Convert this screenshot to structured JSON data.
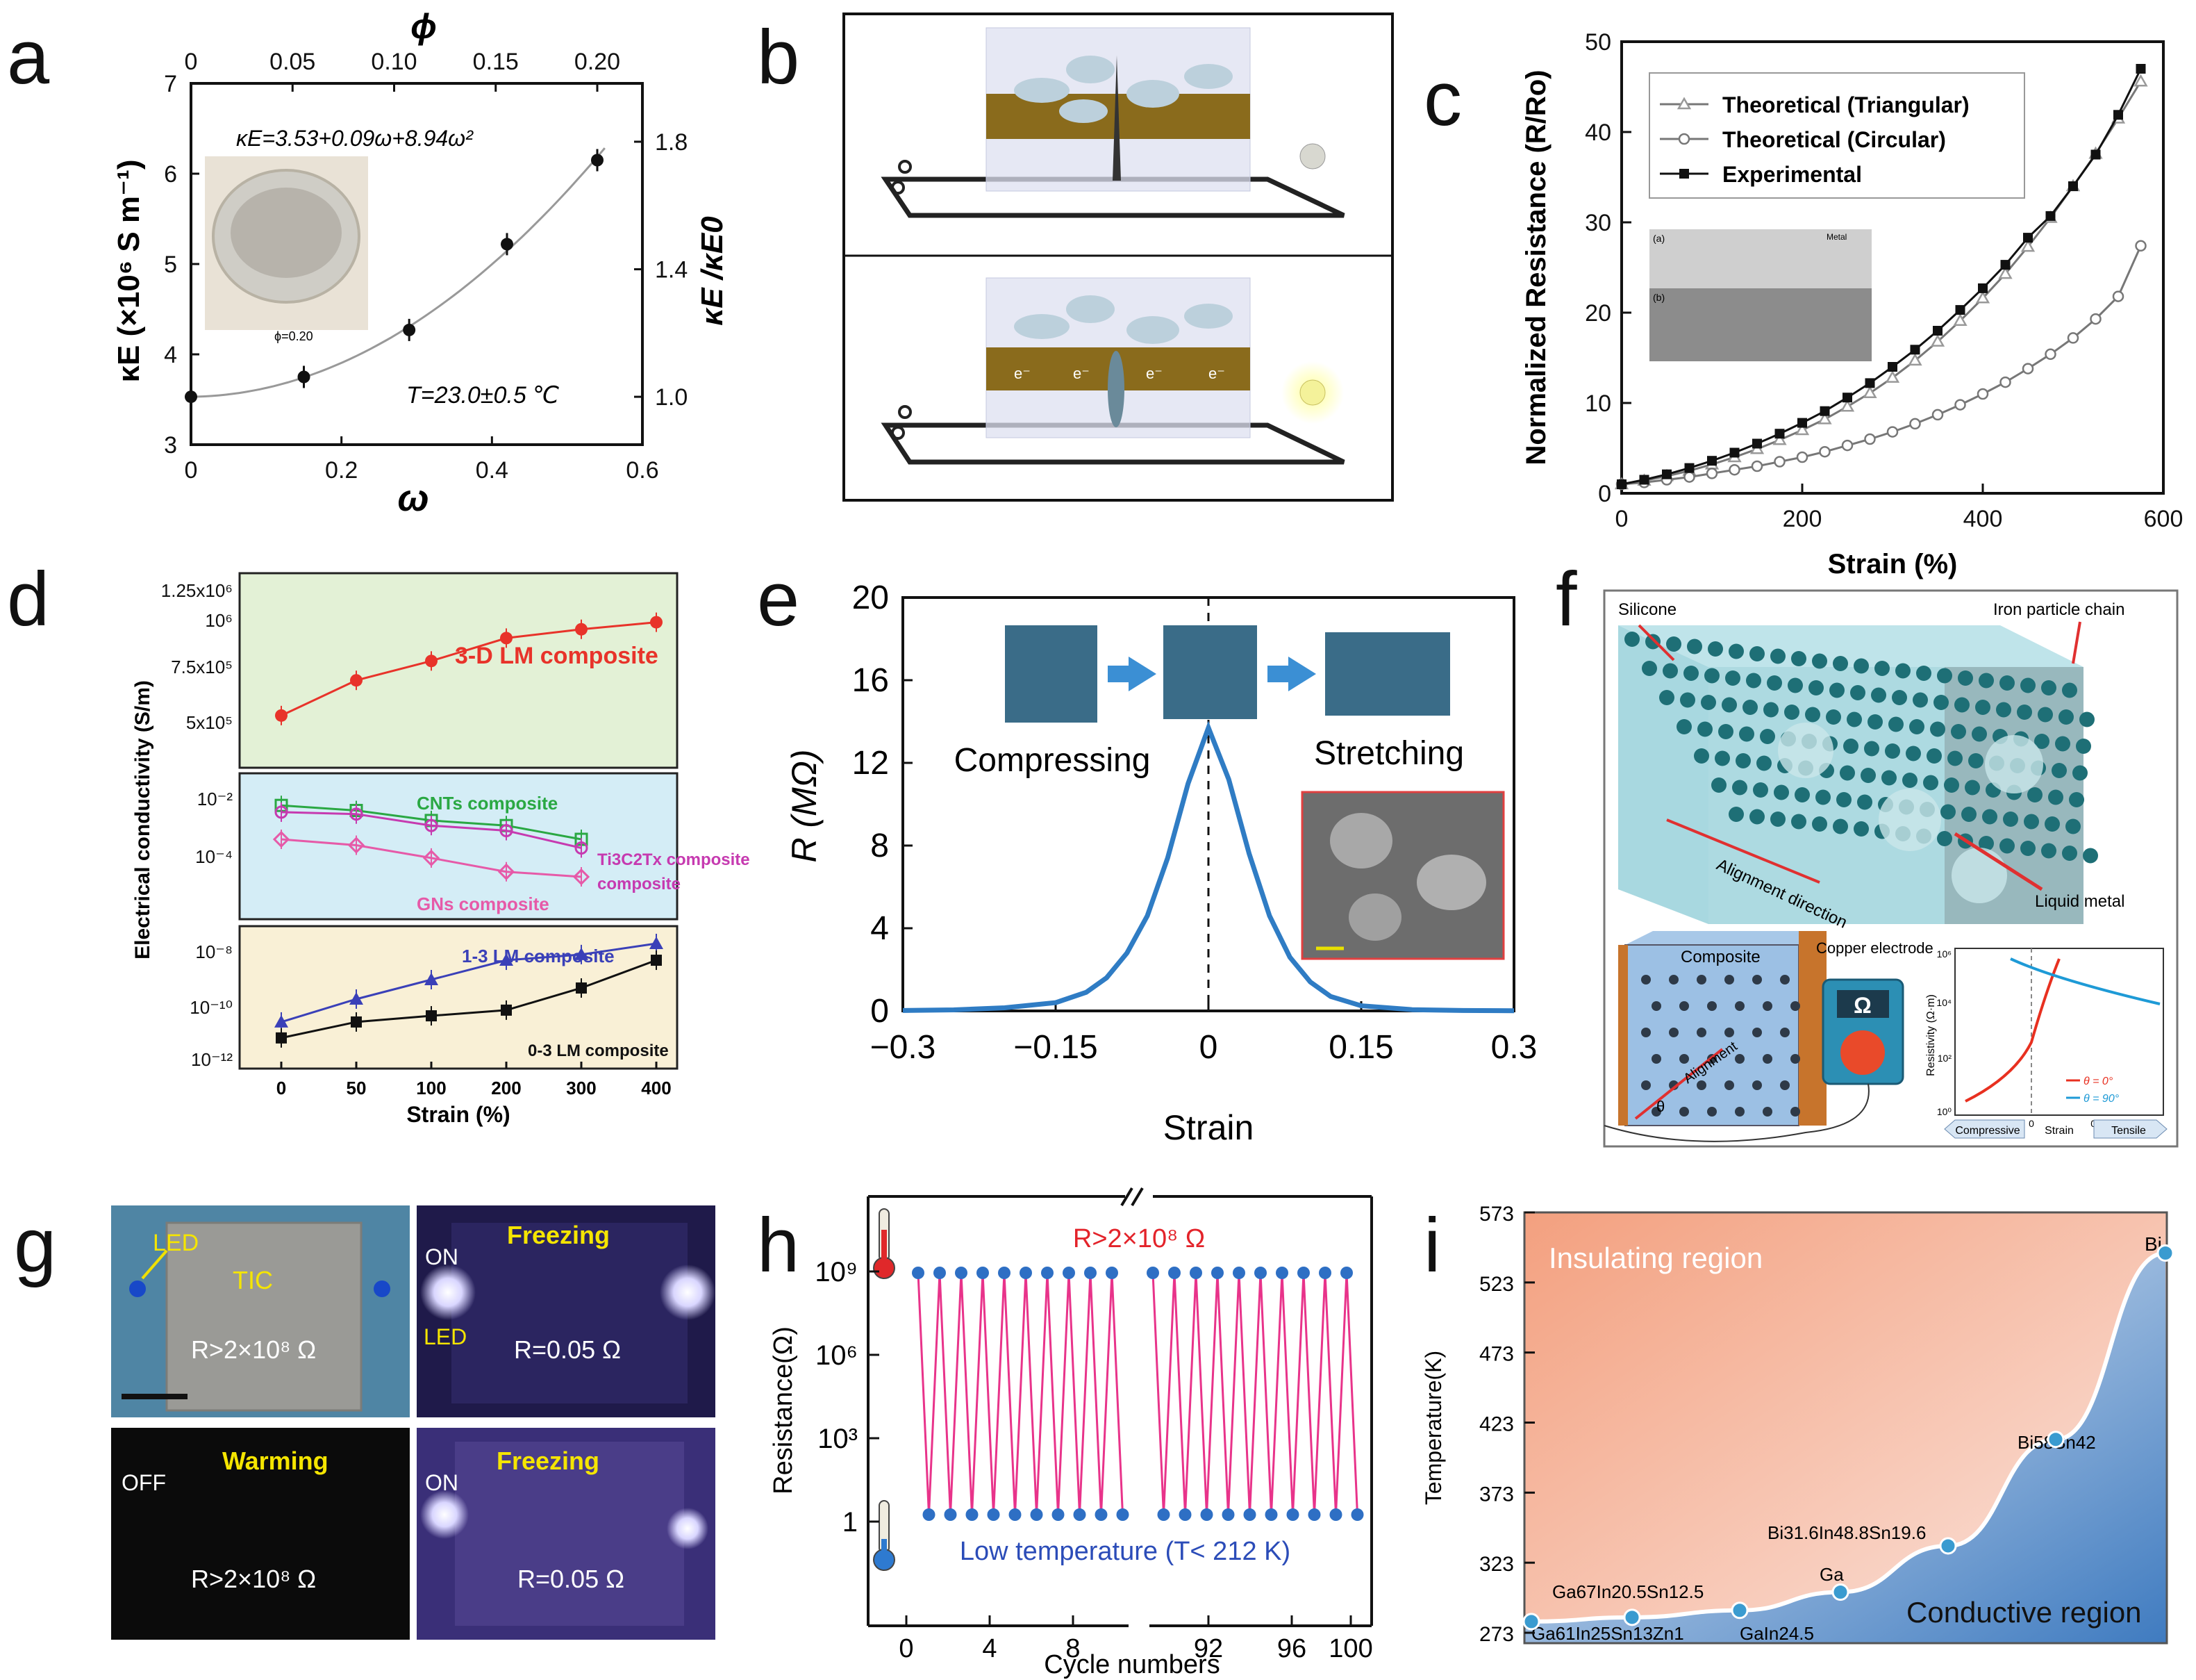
{
  "panel_labels": [
    "a",
    "b",
    "c",
    "d",
    "e",
    "f",
    "g",
    "h",
    "i"
  ],
  "chart_data": [
    {
      "panel": "a",
      "type": "scatter",
      "xlabel": "ω",
      "ylabel": "κE (×10⁶ S m⁻¹)",
      "top_xlabel": "ϕ",
      "right_ylabel": "κE /κE0",
      "xlim": [
        0,
        0.6
      ],
      "ylim": [
        3,
        7
      ],
      "x_ticks": [
        "0",
        "0.2",
        "0.4",
        "0.6"
      ],
      "y_ticks": [
        "3",
        "4",
        "5",
        "6",
        "7"
      ],
      "top_ticks": [
        "0",
        "0.05",
        "0.10",
        "0.15",
        "0.20"
      ],
      "right_ticks": [
        "1.0",
        "1.4",
        "1.8"
      ],
      "x": [
        0,
        0.15,
        0.29,
        0.42,
        0.54
      ],
      "y": [
        3.53,
        3.75,
        4.27,
        5.22,
        6.15
      ],
      "fit_label": "κE=3.53+0.09ω+8.94ω²",
      "temperature_label": "T=23.0±0.5 ℃",
      "inset_label": "ϕ=0.20"
    },
    {
      "panel": "c",
      "type": "line",
      "xlabel": "Strain (%)",
      "ylabel": "Normalized Resistance (R/Ro)",
      "xlim": [
        0,
        600
      ],
      "ylim": [
        0,
        50
      ],
      "x_ticks": [
        "0",
        "200",
        "400",
        "600"
      ],
      "y_ticks": [
        "0",
        "10",
        "20",
        "30",
        "40",
        "50"
      ],
      "x": [
        0,
        25,
        50,
        75,
        100,
        125,
        150,
        175,
        200,
        225,
        250,
        275,
        300,
        325,
        350,
        375,
        400,
        425,
        450,
        475,
        500,
        525,
        550,
        575
      ],
      "series": [
        {
          "name": "Theoretical (Triangular)",
          "marker": "triangle",
          "values": [
            1.0,
            1.4,
            1.9,
            2.5,
            3.2,
            4.0,
            4.9,
            5.9,
            7.0,
            8.2,
            9.6,
            11.1,
            12.8,
            14.7,
            16.8,
            19.1,
            21.6,
            24.3,
            27.3,
            30.5,
            34.0,
            37.6,
            41.5,
            45.6
          ]
        },
        {
          "name": "Theoretical (Circular)",
          "marker": "circle",
          "values": [
            1.0,
            1.2,
            1.5,
            1.8,
            2.2,
            2.6,
            3.0,
            3.5,
            4.0,
            4.6,
            5.3,
            6.0,
            6.8,
            7.7,
            8.7,
            9.8,
            11.0,
            12.3,
            13.8,
            15.4,
            17.2,
            19.3,
            21.8,
            27.4
          ]
        },
        {
          "name": "Experimental",
          "marker": "square",
          "values": [
            1.0,
            1.5,
            2.1,
            2.8,
            3.6,
            4.5,
            5.5,
            6.6,
            7.8,
            9.1,
            10.6,
            12.2,
            14.0,
            15.9,
            18.0,
            20.3,
            22.7,
            25.3,
            28.3,
            30.7,
            34.0,
            37.5,
            41.9,
            47.0
          ]
        }
      ],
      "inset_labels": [
        "(a)",
        "Metal",
        "(b)"
      ]
    },
    {
      "panel": "d",
      "type": "line",
      "xlabel": "Strain (%)",
      "ylabel": "Electrical conductivity (S/m)",
      "categories": [
        "0",
        "50",
        "100",
        "200",
        "300",
        "400"
      ],
      "upper_ticks": [
        "1.25x10⁶",
        "10⁶",
        "7.5x10⁵",
        "5x10⁵"
      ],
      "middle_ticks": [
        "10⁻²",
        "10⁻⁴"
      ],
      "lower_ticks": [
        "10⁻⁸",
        "10⁻¹⁰",
        "10⁻¹²"
      ],
      "series": [
        {
          "name": "3-D LM composite",
          "color": "#e8332a",
          "values": [
            540000,
            740000,
            850000,
            980000,
            1030000,
            1070000
          ]
        },
        {
          "name": "CNTs composite",
          "color": "#2aa843",
          "values": [
            0.006,
            0.004,
            0.0018,
            0.0012,
            0.0004,
            null
          ]
        },
        {
          "name": "Ti3C2Tx composite",
          "color": "#c63ab0",
          "values": [
            0.0035,
            0.003,
            0.0012,
            0.0008,
            0.0002,
            null
          ]
        },
        {
          "name": "GNs composite",
          "color": "#e65aa8",
          "values": [
            0.0004,
            0.00025,
            9e-05,
            3e-05,
            2e-05,
            null
          ]
        },
        {
          "name": "1-3 LM composite",
          "color": "#3a40b8",
          "values": [
            3e-11,
            2e-10,
            1e-09,
            5e-09,
            8e-09,
            2e-08
          ]
        },
        {
          "name": "0-3 LM composite",
          "color": "#111111",
          "values": [
            8e-12,
            3e-11,
            5e-11,
            8e-11,
            5e-10,
            5e-09
          ]
        }
      ]
    },
    {
      "panel": "e",
      "type": "line",
      "xlabel": "Strain",
      "ylabel": "R (MΩ)",
      "xlim": [
        -0.3,
        0.3
      ],
      "ylim": [
        0,
        20
      ],
      "x_ticks": [
        "−0.3",
        "−0.15",
        "0",
        "0.15",
        "0.3"
      ],
      "y_ticks": [
        "0",
        "4",
        "8",
        "12",
        "16",
        "20"
      ],
      "x": [
        -0.3,
        -0.25,
        -0.2,
        -0.15,
        -0.12,
        -0.1,
        -0.08,
        -0.06,
        -0.04,
        -0.02,
        0,
        0.02,
        0.04,
        0.06,
        0.08,
        0.1,
        0.12,
        0.15,
        0.2,
        0.25,
        0.3
      ],
      "values": [
        0.02,
        0.05,
        0.15,
        0.4,
        0.9,
        1.6,
        2.8,
        4.6,
        7.4,
        11.0,
        13.7,
        11.2,
        7.6,
        4.6,
        2.6,
        1.4,
        0.7,
        0.25,
        0.06,
        0.02,
        0.01
      ],
      "annotations": [
        "Compressing",
        "Stretching"
      ]
    },
    {
      "panel": "h",
      "type": "line",
      "xlabel": "Cycle numbers",
      "ylabel": "Resistance(Ω)",
      "x_ticks_left": [
        "0",
        "4",
        "8"
      ],
      "x_ticks_right": [
        "92",
        "96",
        "100"
      ],
      "y_ticks": [
        "10⁹",
        "10⁶",
        "10³",
        "1"
      ],
      "high_value": "R>2×10⁸ Ω",
      "low_value": "Low temperature (T< 212 K)",
      "cycles_left": 10,
      "cycles_right": 10
    },
    {
      "panel": "i",
      "type": "scatter",
      "xlabel": "",
      "ylabel": "Temperature(K)",
      "y_ticks": [
        "273",
        "323",
        "373",
        "423",
        "473",
        "523",
        "573"
      ],
      "ylim": [
        273,
        573
      ],
      "points": [
        {
          "name": "Ga61In25Sn13Zn1",
          "value": 281
        },
        {
          "name": "Ga67In20.5Sn12.5",
          "value": 284
        },
        {
          "name": "GaIn24.5",
          "value": 289
        },
        {
          "name": "Ga",
          "value": 302
        },
        {
          "name": "Bi31.6In48.8Sn19.6",
          "value": 335
        },
        {
          "name": "Bi58Sn42",
          "value": 411
        },
        {
          "name": "Bi",
          "value": 544
        }
      ],
      "regions": [
        "Insulating region",
        "Conductive region"
      ]
    }
  ],
  "panel_b": {
    "electrons": [
      "e⁻",
      "e⁻",
      "e⁻",
      "e⁻"
    ]
  },
  "panel_f": {
    "labels": {
      "silicone": "Silicone",
      "iron_chain": "Iron particle chain",
      "alignment_direction": "Alignment direction",
      "liquid_metal": "Liquid metal",
      "composite": "Composite",
      "copper_electrode": "Copper electrode",
      "alignment": "Alignment",
      "theta": "θ",
      "ohm": "Ω"
    },
    "inset": {
      "ylabel": "Resistivity (Ω·m)",
      "y_ticks": [
        "10⁶",
        "10⁴",
        "10²",
        "10⁰"
      ],
      "x_ticks": [
        "-0.1",
        "0",
        "0.1"
      ],
      "legend": [
        "θ = 0°",
        "θ = 90°"
      ],
      "bottom": [
        "Compressive",
        "Strain",
        "Tensile"
      ]
    }
  },
  "panel_g": {
    "tiles": [
      {
        "texts": [
          "LED",
          "TIC",
          "R>2×10⁸ Ω"
        ]
      },
      {
        "texts": [
          "Freezing",
          "ON",
          "LED",
          "R=0.05 Ω"
        ]
      },
      {
        "texts": [
          "Warming",
          "OFF",
          "R>2×10⁸ Ω"
        ]
      },
      {
        "texts": [
          "Freezing",
          "ON",
          "R=0.05 Ω"
        ]
      }
    ]
  }
}
